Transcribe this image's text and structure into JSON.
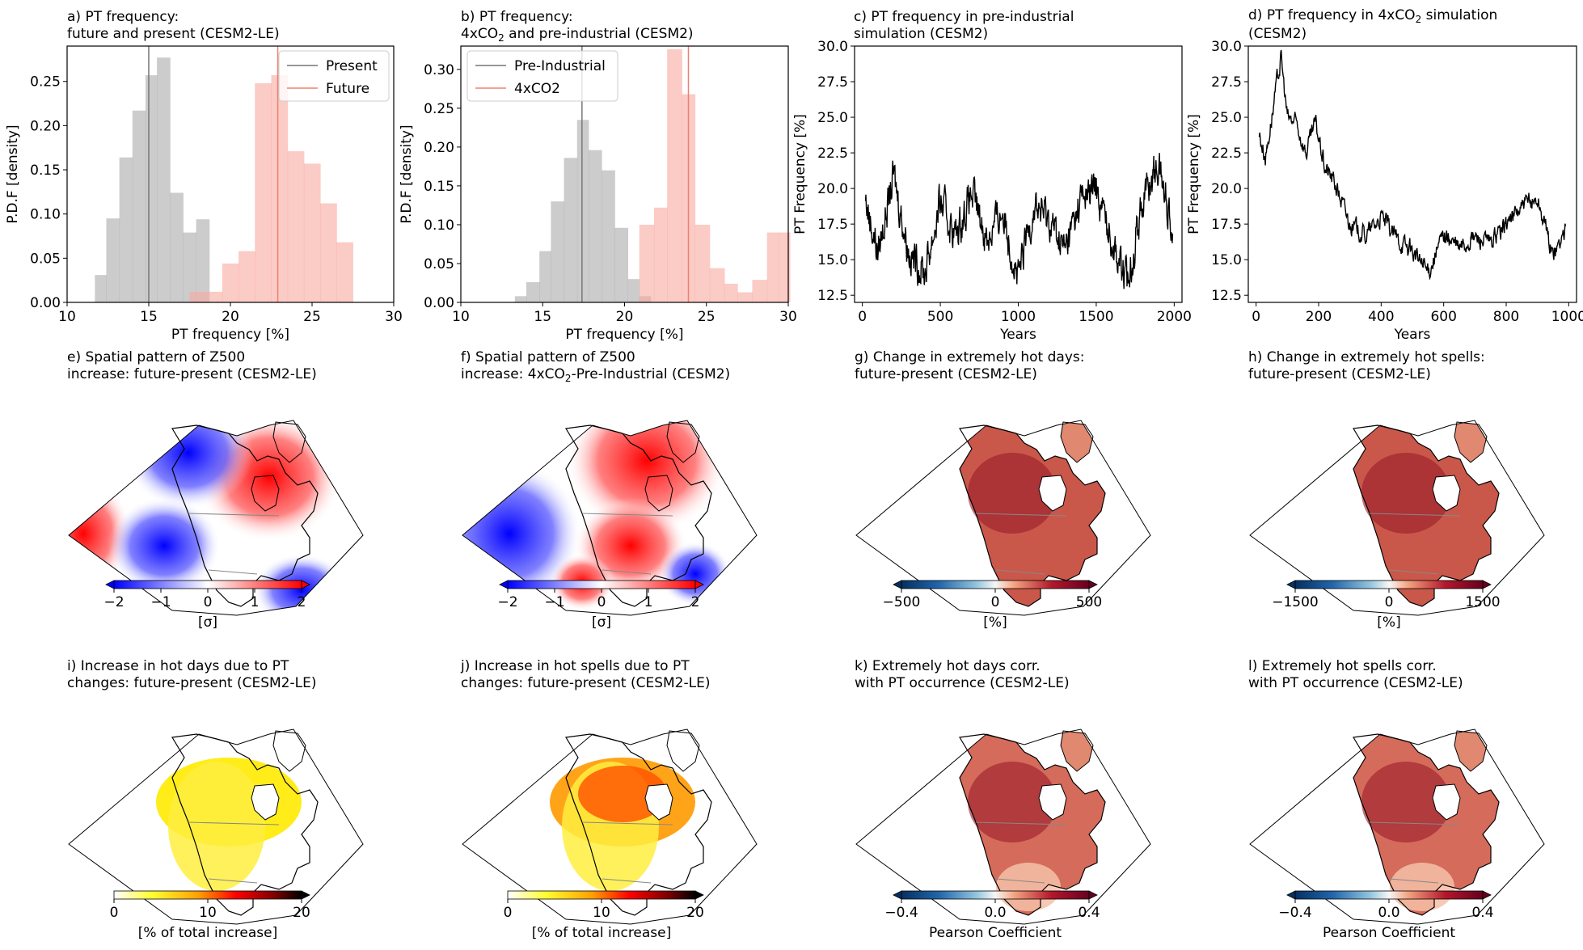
{
  "chart_data": [
    {
      "panel": "a",
      "type": "bar",
      "title": [
        "a) PT frequency:",
        "future and present (CESM2-LE)"
      ],
      "xlabel": "PT frequency [%]",
      "ylabel": "P.D.F [density]",
      "xlim": [
        10,
        30
      ],
      "ylim": [
        0,
        0.29
      ],
      "xticks": [
        "10",
        "15",
        "20",
        "25",
        "30"
      ],
      "yticks": [
        "0.00",
        "0.05",
        "0.10",
        "0.15",
        "0.20",
        "0.25"
      ],
      "legend": "top-right",
      "series": [
        {
          "name": "Present",
          "color": "#aaaaaa",
          "line": 15.0,
          "bins": [
            11.7,
            12.4,
            13.2,
            14.0,
            14.8,
            15.5,
            16.3,
            17.1,
            17.9
          ],
          "values": [
            0.031,
            0.095,
            0.164,
            0.217,
            0.257,
            0.277,
            0.124,
            0.079,
            0.094
          ]
        },
        {
          "name": "Future",
          "color": "#f8a8a0",
          "line": 22.9,
          "bins": [
            17.5,
            18.5,
            19.5,
            20.5,
            21.5,
            22.5,
            23.5,
            24.5,
            25.5,
            26.5
          ],
          "values": [
            0.012,
            0.012,
            0.044,
            0.058,
            0.248,
            0.257,
            0.171,
            0.157,
            0.112,
            0.068
          ]
        }
      ]
    },
    {
      "panel": "b",
      "type": "bar",
      "title": [
        "b) PT frequency:",
        "4xCO",
        "2",
        " and pre-industrial (CESM2)"
      ],
      "xlabel": "PT frequency [%]",
      "ylabel": "P.D.F [density]",
      "xlim": [
        10,
        30
      ],
      "ylim": [
        0,
        0.33
      ],
      "xticks": [
        "10",
        "15",
        "20",
        "25",
        "30"
      ],
      "yticks": [
        "0.00",
        "0.05",
        "0.10",
        "0.15",
        "0.20",
        "0.25",
        "0.30"
      ],
      "legend": "top-left",
      "series": [
        {
          "name": "Pre-Industrial",
          "color": "#aaaaaa",
          "line": 17.4,
          "bins": [
            13.3,
            14.0,
            14.8,
            15.5,
            16.3,
            17.1,
            17.8,
            18.6,
            19.4,
            20.2,
            20.9
          ],
          "values": [
            0.008,
            0.026,
            0.066,
            0.13,
            0.186,
            0.235,
            0.196,
            0.17,
            0.096,
            0.03,
            0.008
          ]
        },
        {
          "name": "4xCO2",
          "color": "#f8a8a0",
          "line": 23.9,
          "bins": [
            20.9,
            21.8,
            22.6,
            23.5,
            24.3,
            25.2,
            26.1,
            26.9,
            27.8,
            28.7,
            29.4
          ],
          "values": [
            0.1,
            0.122,
            0.326,
            0.268,
            0.1,
            0.044,
            0.024,
            0.013,
            0.029,
            0.09,
            0.09
          ]
        }
      ]
    },
    {
      "panel": "c",
      "type": "line",
      "title": [
        "c) PT frequency in pre-industrial",
        "simulation (CESM2)"
      ],
      "xlabel": "Years",
      "ylabel": "PT Frequency [%]",
      "xlim": [
        -50,
        2050
      ],
      "ylim": [
        12,
        30
      ],
      "xticks": [
        "0",
        "500",
        "1000",
        "1500",
        "2000"
      ],
      "yticks": [
        "12.5",
        "15.0",
        "17.5",
        "20.0",
        "22.5",
        "25.0",
        "27.5",
        "30.0"
      ],
      "color": "#000000",
      "x": [
        20,
        100,
        200,
        300,
        400,
        500,
        600,
        700,
        800,
        900,
        1000,
        1100,
        1200,
        1300,
        1400,
        1500,
        1600,
        1700,
        1800,
        1900,
        1990
      ],
      "y": [
        19.2,
        15.5,
        20.9,
        15.5,
        14.1,
        19.0,
        16.7,
        19.6,
        16.5,
        18.5,
        13.6,
        18.9,
        17.8,
        15.6,
        19.3,
        20.0,
        16.5,
        13.3,
        19.4,
        21.6,
        17.3
      ]
    },
    {
      "panel": "d",
      "type": "line",
      "title": [
        "d) PT frequency in 4xCO",
        "2",
        " simulation",
        "(CESM2)"
      ],
      "xlabel": "Years",
      "ylabel": "PT Frequency [%]",
      "xlim": [
        -25,
        1025
      ],
      "ylim": [
        12,
        30
      ],
      "xticks": [
        "0",
        "200",
        "400",
        "600",
        "800",
        "1000"
      ],
      "yticks": [
        "12.5",
        "15.0",
        "17.5",
        "20.0",
        "22.5",
        "25.0",
        "27.5",
        "30.0"
      ],
      "color": "#000000",
      "x": [
        10,
        30,
        50,
        80,
        100,
        130,
        160,
        190,
        220,
        250,
        300,
        350,
        400,
        450,
        500,
        550,
        600,
        650,
        700,
        750,
        800,
        850,
        900,
        950,
        990
      ],
      "y": [
        23.8,
        22.2,
        25.0,
        29.2,
        25.0,
        24.5,
        22.5,
        24.6,
        21.5,
        20.5,
        17.5,
        16.7,
        18.0,
        16.5,
        15.6,
        14.1,
        16.8,
        15.8,
        16.6,
        16.1,
        17.6,
        18.7,
        19.3,
        15.3,
        17.1
      ]
    },
    {
      "panel": "e",
      "type": "heatmap",
      "title": [
        "e) Spatial pattern of Z500",
        "increase: future-present (CESM2-LE)"
      ],
      "colormap": "bwr",
      "colorbar_ticks": [
        "−2",
        "−1",
        "0",
        "1",
        "2"
      ],
      "colorbar_label": "[σ]"
    },
    {
      "panel": "f",
      "type": "heatmap",
      "title": [
        "f) Spatial pattern of Z500",
        "increase: 4xCO",
        "2",
        "-Pre-Industrial (CESM2)"
      ],
      "colormap": "bwr",
      "colorbar_ticks": [
        "−2",
        "−1",
        "0",
        "1",
        "2"
      ],
      "colorbar_label": "[σ]"
    },
    {
      "panel": "g",
      "type": "heatmap",
      "title": [
        "g) Change in extremely hot days:",
        "future-present (CESM2-LE)"
      ],
      "colormap": "RdBu_r",
      "colorbar_ticks": [
        "−500",
        "0",
        "500"
      ],
      "colorbar_label": "[%]"
    },
    {
      "panel": "h",
      "type": "heatmap",
      "title": [
        "h) Change in extremely hot spells:",
        "future-present (CESM2-LE)"
      ],
      "colormap": "RdBu_r",
      "colorbar_ticks": [
        "−1500",
        "0",
        "1500"
      ],
      "colorbar_label": "[%]"
    },
    {
      "panel": "i",
      "type": "heatmap",
      "title": [
        "i) Increase in hot days due to PT",
        "changes: future-present (CESM2-LE)"
      ],
      "colormap": "hot_r",
      "colorbar_ticks": [
        "0",
        "10",
        "20"
      ],
      "colorbar_label": "[% of total increase]"
    },
    {
      "panel": "j",
      "type": "heatmap",
      "title": [
        "j) Increase in hot spells due to PT",
        "changes: future-present (CESM2-LE)"
      ],
      "colormap": "hot_r",
      "colorbar_ticks": [
        "0",
        "10",
        "20"
      ],
      "colorbar_label": "[% of total increase]"
    },
    {
      "panel": "k",
      "type": "heatmap",
      "title": [
        "k) Extremely hot days corr.",
        "with PT occurrence (CESM2-LE)"
      ],
      "colormap": "RdBu_r",
      "colorbar_ticks": [
        "−0.4",
        "0.0",
        "0.4"
      ],
      "colorbar_label": "Pearson Coefficient"
    },
    {
      "panel": "l",
      "type": "heatmap",
      "title": [
        "l) Extremely hot spells corr.",
        "with PT occurrence (CESM2-LE)"
      ],
      "colormap": "RdBu_r",
      "colorbar_ticks": [
        "−0.4",
        "0.0",
        "0.4"
      ],
      "colorbar_label": "Pearson Coefficient"
    }
  ]
}
